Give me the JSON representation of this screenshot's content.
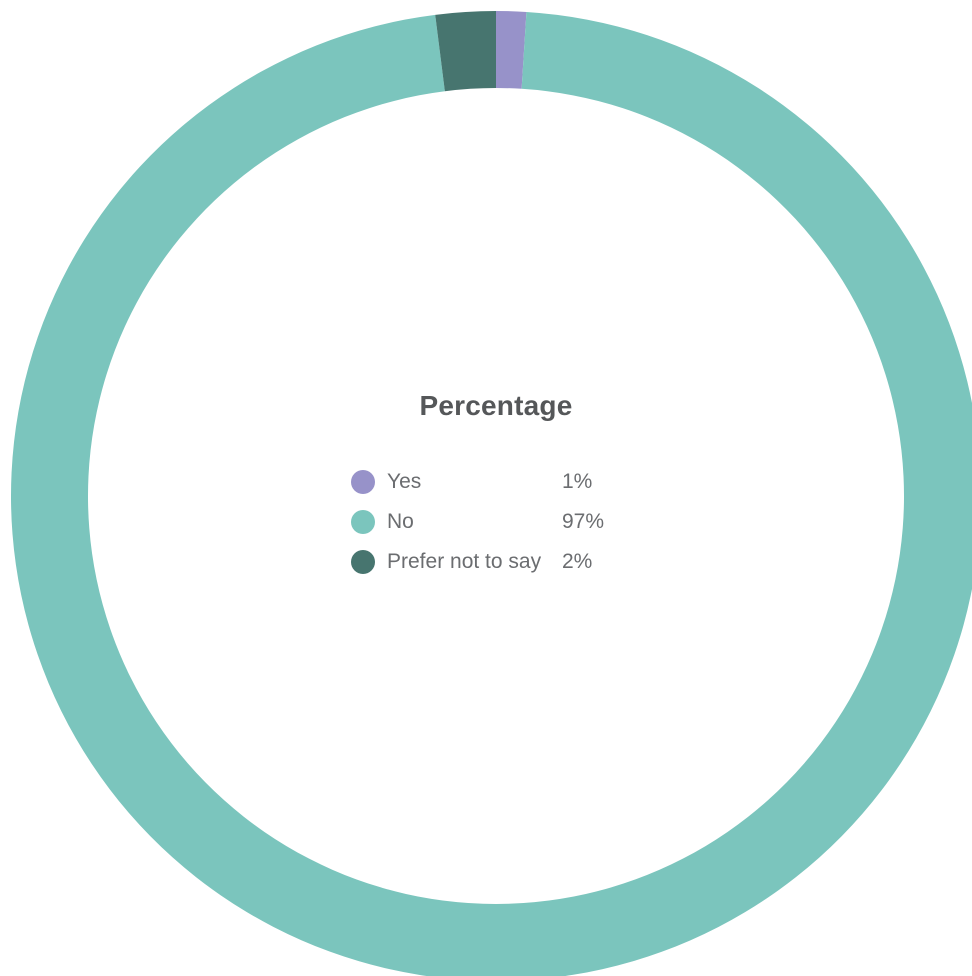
{
  "chart_data": {
    "type": "pie",
    "style": "donut",
    "title": "Percentage",
    "categories": [
      "Yes",
      "No",
      "Prefer not to say"
    ],
    "values": [
      1,
      97,
      2
    ],
    "value_labels": [
      "1%",
      "97%",
      "2%"
    ],
    "colors": [
      "#9792c9",
      "#7bc5bd",
      "#47756f"
    ],
    "legend_placement": "center"
  }
}
